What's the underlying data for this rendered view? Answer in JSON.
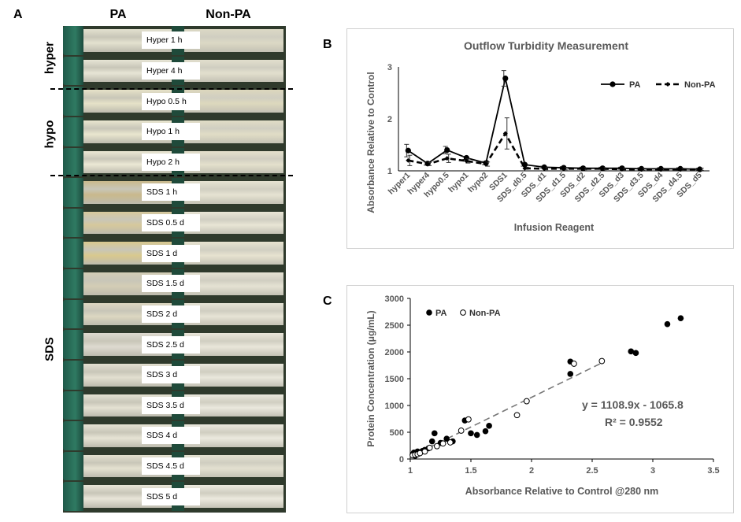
{
  "panel_a": {
    "letter": "A",
    "columns": [
      "PA",
      "Non-PA"
    ],
    "groups": [
      "hyper",
      "hypo",
      "SDS"
    ],
    "tubes": [
      {
        "label": "Hyper 1 h",
        "pa_color": "#e3e1cf",
        "npa_color": "#dcd9c5"
      },
      {
        "label": "Hyper 4 h",
        "pa_color": "#e7e5d5",
        "npa_color": "#e2dfcd"
      },
      {
        "label": "Hypo 0.5 h",
        "pa_color": "#e6e2c8",
        "npa_color": "#ddd8bd"
      },
      {
        "label": "Hypo 1 h",
        "pa_color": "#e9e6cf",
        "npa_color": "#e1ddc6"
      },
      {
        "label": "Hypo 2 h",
        "pa_color": "#ebe8d4",
        "npa_color": "#e4e0cc"
      },
      {
        "label": "SDS 1 h",
        "pa_color": "#c9b98c",
        "npa_color": "#e6e3d2"
      },
      {
        "label": "SDS 0.5 d",
        "pa_color": "#d6c89c",
        "npa_color": "#e8e5d5"
      },
      {
        "label": "SDS 1 d",
        "pa_color": "#d9c98e",
        "npa_color": "#e7e3d0"
      },
      {
        "label": "SDS 1.5 d",
        "pa_color": "#d3cdb5",
        "npa_color": "#e5e2d3"
      },
      {
        "label": "SDS 2 d",
        "pa_color": "#dcd7c1",
        "npa_color": "#e6e3d5"
      },
      {
        "label": "SDS 2.5 d",
        "pa_color": "#dedad0",
        "npa_color": "#e9e6da"
      },
      {
        "label": "SDS 3 d",
        "pa_color": "#e2dfd0",
        "npa_color": "#e9e7dc"
      },
      {
        "label": "SDS 3.5 d",
        "pa_color": "#e4e1d2",
        "npa_color": "#eae8dd"
      },
      {
        "label": "SDS 4 d",
        "pa_color": "#e6e3d4",
        "npa_color": "#ebe9de"
      },
      {
        "label": "SDS 4.5 d",
        "pa_color": "#e4e1d0",
        "npa_color": "#e3e0d0"
      },
      {
        "label": "SDS 5 d",
        "pa_color": "#e8e5d8",
        "npa_color": "#ece9de"
      }
    ]
  },
  "panel_b": {
    "letter": "B"
  },
  "panel_c": {
    "letter": "C"
  },
  "chart_data": [
    {
      "type": "line",
      "title": "Outflow Turbidity Measurement",
      "xlabel": "Infusion Reagent",
      "ylabel": "Absorbance  Relative to Control",
      "ylim": [
        1,
        3
      ],
      "yticks": [
        "1",
        "2",
        "3"
      ],
      "categories": [
        "hyper1",
        "hyper4",
        "hypo0.5",
        "hypo1",
        "hypo2",
        "SDS1",
        "SDS_d0.5",
        "SDS_d1",
        "SDS_d1.5",
        "SDS_d2",
        "SDS_d2.5",
        "SDS_d3",
        "SDS_d3.5",
        "SDS_d4",
        "SDS_d4.5",
        "SDS_d5"
      ],
      "series": [
        {
          "name": "PA",
          "style": "solid",
          "values": [
            1.39,
            1.14,
            1.4,
            1.25,
            1.15,
            2.78,
            1.12,
            1.07,
            1.06,
            1.05,
            1.05,
            1.05,
            1.04,
            1.04,
            1.04,
            1.03
          ],
          "errors": [
            0.12,
            0.03,
            0.07,
            0.03,
            0.03,
            0.15,
            0.03,
            0.02,
            0.02,
            0.02,
            0.02,
            0.02,
            0.02,
            0.02,
            0.02,
            0.02
          ]
        },
        {
          "name": "Non-PA",
          "style": "dashed",
          "values": [
            1.2,
            1.13,
            1.24,
            1.19,
            1.13,
            1.72,
            1.05,
            1.04,
            1.04,
            1.04,
            1.04,
            1.03,
            1.03,
            1.03,
            1.03,
            1.03
          ],
          "errors": [
            0.1,
            0.03,
            0.08,
            0.04,
            0.04,
            0.3,
            0.02,
            0.02,
            0.02,
            0.02,
            0.02,
            0.02,
            0.02,
            0.02,
            0.02,
            0.02
          ]
        }
      ],
      "legend": "top-right"
    },
    {
      "type": "scatter",
      "title": "",
      "xlabel": "Absorbance  Relative to Control @280 nm",
      "ylabel": "Protein Concentration  (μg/mL)",
      "xlim": [
        1,
        3.5
      ],
      "ylim": [
        0,
        3000
      ],
      "xticks": [
        "1",
        "1.5",
        "2",
        "2.5",
        "3",
        "3.5"
      ],
      "yticks": [
        "0",
        "500",
        "1000",
        "1500",
        "2000",
        "2500",
        "3000"
      ],
      "series": [
        {
          "name": "PA",
          "marker": "filled",
          "points": [
            [
              1.02,
              90
            ],
            [
              1.03,
              120
            ],
            [
              1.04,
              60
            ],
            [
              1.05,
              100
            ],
            [
              1.06,
              140
            ],
            [
              1.08,
              110
            ],
            [
              1.1,
              150
            ],
            [
              1.12,
              170
            ],
            [
              1.15,
              200
            ],
            [
              1.18,
              330
            ],
            [
              1.2,
              480
            ],
            [
              1.25,
              300
            ],
            [
              1.3,
              380
            ],
            [
              1.35,
              330
            ],
            [
              1.45,
              720
            ],
            [
              1.5,
              480
            ],
            [
              1.55,
              450
            ],
            [
              1.62,
              520
            ],
            [
              1.65,
              620
            ],
            [
              2.32,
              1820
            ],
            [
              2.32,
              1590
            ],
            [
              2.82,
              2010
            ],
            [
              2.86,
              1980
            ],
            [
              3.12,
              2520
            ],
            [
              3.23,
              2630
            ]
          ]
        },
        {
          "name": "Non-PA",
          "marker": "open",
          "points": [
            [
              1.02,
              70
            ],
            [
              1.04,
              80
            ],
            [
              1.06,
              90
            ],
            [
              1.08,
              110
            ],
            [
              1.12,
              140
            ],
            [
              1.16,
              210
            ],
            [
              1.22,
              240
            ],
            [
              1.27,
              290
            ],
            [
              1.33,
              310
            ],
            [
              1.42,
              530
            ],
            [
              1.48,
              740
            ],
            [
              1.88,
              820
            ],
            [
              1.96,
              1080
            ],
            [
              2.35,
              1780
            ],
            [
              2.58,
              1830
            ]
          ]
        }
      ],
      "trendline": {
        "slope": 1108.9,
        "intercept": -1065.8,
        "x_range": [
          1,
          2.6
        ]
      },
      "equation": "y = 1108.9x - 1065.8",
      "r_squared": "R² = 0.9552",
      "legend": "top-left"
    }
  ]
}
